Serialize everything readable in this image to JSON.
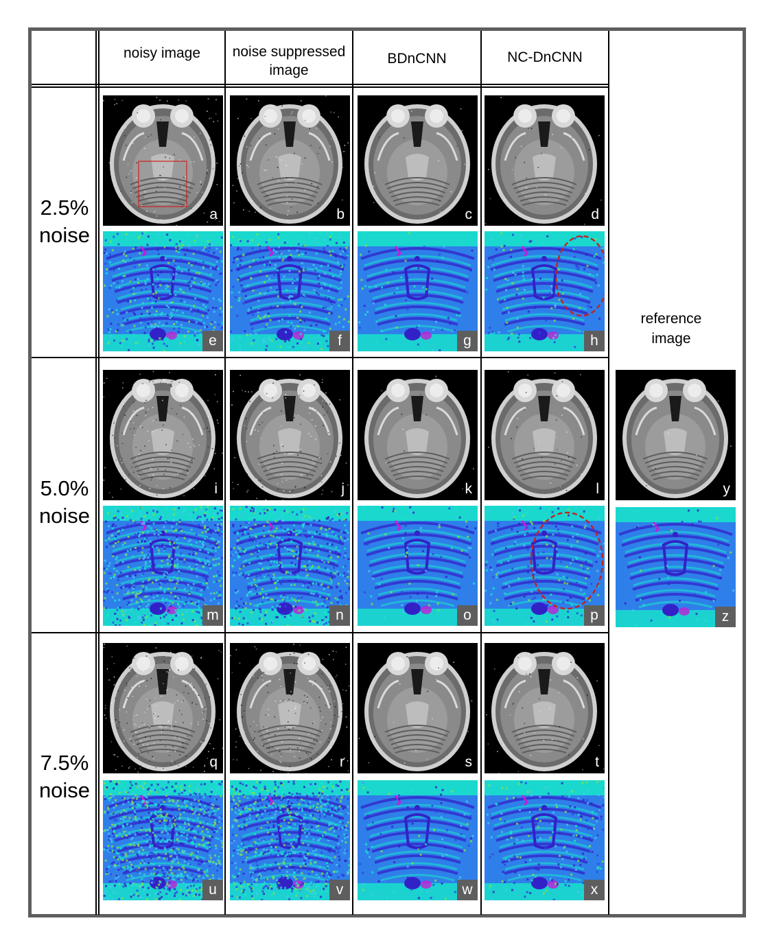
{
  "columns": {
    "noisy": "noisy image",
    "suppressed_line1": "noise suppressed",
    "suppressed_line2": "image",
    "bdncnn": "BDnCNN",
    "ncdncnn": "NC-DnCNN",
    "reference_line1": "reference",
    "reference_line2": "image"
  },
  "rows": [
    {
      "pct": "2.5%",
      "word": "noise"
    },
    {
      "pct": "5.0%",
      "word": "noise"
    },
    {
      "pct": "7.5%",
      "word": "noise"
    }
  ],
  "labels": {
    "a": "a",
    "b": "b",
    "c": "c",
    "d": "d",
    "e": "e",
    "f": "f",
    "g": "g",
    "h": "h",
    "i": "i",
    "j": "j",
    "k": "k",
    "l": "l",
    "m": "m",
    "n": "n",
    "o": "o",
    "p": "p",
    "q": "q",
    "r": "r",
    "s": "s",
    "t": "t",
    "u": "u",
    "v": "v",
    "w": "w",
    "x": "x",
    "y": "y",
    "z": "z"
  },
  "colors": {
    "frame": "#5e5e5e",
    "roi_box": "#d42020",
    "highlight_ellipse": "#c42020",
    "map_base": "#2f7fea",
    "map_low": "#16e7c9",
    "map_high": "#3321c8",
    "map_peak": "#c21fd6"
  }
}
